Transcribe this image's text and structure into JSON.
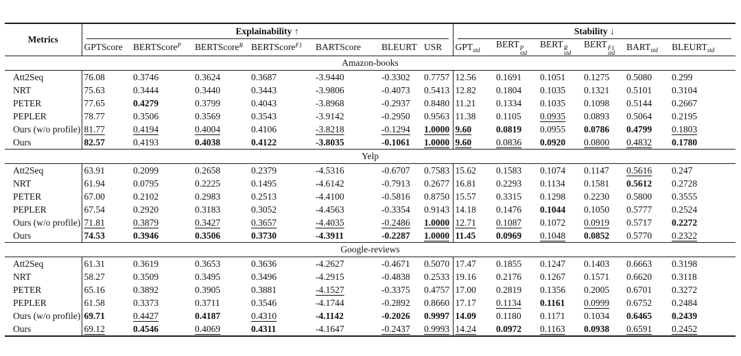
{
  "table": {
    "metrics_label": "Metrics",
    "groups": [
      {
        "id": "explainability",
        "label": "Explainability ↑"
      },
      {
        "id": "stability",
        "label": "Stability ↓"
      }
    ],
    "columns": [
      {
        "id": "gptscore",
        "base": "GPTScore",
        "sup": "",
        "sub": ""
      },
      {
        "id": "bertscore-p",
        "base": "BERTScore",
        "sup": "P",
        "sub": ""
      },
      {
        "id": "bertscore-r",
        "base": "BERTScore",
        "sup": "R",
        "sub": ""
      },
      {
        "id": "bertscore-f1",
        "base": "BERTScore",
        "sup": "F1",
        "sub": ""
      },
      {
        "id": "bartscore",
        "base": "BARTScore",
        "sup": "",
        "sub": ""
      },
      {
        "id": "bleurt",
        "base": "BLEURT",
        "sup": "",
        "sub": ""
      },
      {
        "id": "usr",
        "base": "USR",
        "sup": "",
        "sub": ""
      },
      {
        "id": "gpt-std",
        "base": "GPT",
        "sup": "",
        "sub": "std"
      },
      {
        "id": "bert-p-std",
        "base": "BERT",
        "sup": "P",
        "sub": "std"
      },
      {
        "id": "bert-r-std",
        "base": "BERT",
        "sup": "R",
        "sub": "std"
      },
      {
        "id": "bert-f1-std",
        "base": "BERT",
        "sup": "F1",
        "sub": "std"
      },
      {
        "id": "bart-std",
        "base": "BART",
        "sup": "",
        "sub": "std"
      },
      {
        "id": "bleurt-std",
        "base": "BLEURT",
        "sup": "",
        "sub": "std"
      }
    ],
    "style_legend": {
      "b": "bold (best)",
      "u": "underline (second best)",
      "bu": "bold+underline"
    },
    "sections": [
      {
        "title": "Amazon-books",
        "rows": [
          {
            "model": "Att2Seq",
            "v": [
              "76.08",
              "0.3746",
              "0.3624",
              "0.3687",
              "-3.9440",
              "-0.3302",
              "0.7757",
              "12.56",
              "0.1691",
              "0.1051",
              "0.1275",
              "0.5080",
              "0.299"
            ],
            "s": [
              "",
              "",
              "",
              "",
              "",
              "",
              "",
              "",
              "",
              "",
              "",
              "",
              ""
            ]
          },
          {
            "model": "NRT",
            "v": [
              "75.63",
              "0.3444",
              "0.3440",
              "0.3443",
              "-3.9806",
              "-0.4073",
              "0.5413",
              "12.82",
              "0.1804",
              "0.1035",
              "0.1321",
              "0.5101",
              "0.3104"
            ],
            "s": [
              "",
              "",
              "",
              "",
              "",
              "",
              "",
              "",
              "",
              "",
              "",
              "",
              ""
            ]
          },
          {
            "model": "PETER",
            "v": [
              "77.65",
              "0.4279",
              "0.3799",
              "0.4043",
              "-3.8968",
              "-0.2937",
              "0.8480",
              "11.21",
              "0.1334",
              "0.1035",
              "0.1098",
              "0.5144",
              "0.2667"
            ],
            "s": [
              "",
              "b",
              "",
              "",
              "",
              "",
              "",
              "",
              "",
              "",
              "",
              "",
              ""
            ]
          },
          {
            "model": "PEPLER",
            "v": [
              "78.77",
              "0.3506",
              "0.3569",
              "0.3543",
              "-3.9142",
              "-0.2950",
              "0.9563",
              "11.38",
              "0.1105",
              "0.0935",
              "0.0893",
              "0.5064",
              "0.2195"
            ],
            "s": [
              "",
              "",
              "",
              "",
              "",
              "",
              "",
              "",
              "",
              "u",
              "",
              "",
              ""
            ]
          },
          {
            "model": "Ours (w/o profile)",
            "v": [
              "81.77",
              "0.4194",
              "0.4004",
              "0.4106",
              "-3.8218",
              "-0.1294",
              "1.0000",
              "9.60",
              "0.0819",
              "0.0955",
              "0.0786",
              "0.4799",
              "0.1803"
            ],
            "s": [
              "u",
              "u",
              "u",
              "",
              "u",
              "u",
              "bu",
              "bu",
              "b",
              "",
              "b",
              "b",
              "u"
            ]
          },
          {
            "model": "Ours",
            "v": [
              "82.57",
              "0.4193",
              "0.4038",
              "0.4122",
              "-3.8035",
              "-0.1061",
              "1.0000",
              "9.60",
              "0.0836",
              "0.0920",
              "0.0800",
              "0.4832",
              "0.1780"
            ],
            "s": [
              "b",
              "",
              "b",
              "b",
              "b",
              "b",
              "bu",
              "bu",
              "u",
              "b",
              "u",
              "u",
              "b"
            ]
          }
        ]
      },
      {
        "title": "Yelp",
        "rows": [
          {
            "model": "Att2Seq",
            "v": [
              "63.91",
              "0.2099",
              "0.2658",
              "0.2379",
              "-4.5316",
              "-0.6707",
              "0.7583",
              "15.62",
              "0.1583",
              "0.1074",
              "0.1147",
              "0.5616",
              "0.247"
            ],
            "s": [
              "",
              "",
              "",
              "",
              "",
              "",
              "",
              "",
              "",
              "",
              "",
              "u",
              ""
            ]
          },
          {
            "model": "NRT",
            "v": [
              "61.94",
              "0.0795",
              "0.2225",
              "0.1495",
              "-4.6142",
              "-0.7913",
              "0.2677",
              "16.81",
              "0.2293",
              "0.1134",
              "0.1581",
              "0.5612",
              "0.2728"
            ],
            "s": [
              "",
              "",
              "",
              "",
              "",
              "",
              "",
              "",
              "",
              "",
              "",
              "b",
              ""
            ]
          },
          {
            "model": "PETER",
            "v": [
              "67.00",
              "0.2102",
              "0.2983",
              "0.2513",
              "-4.4100",
              "-0.5816",
              "0.8750",
              "15.57",
              "0.3315",
              "0.1298",
              "0.2230",
              "0.5800",
              "0.3555"
            ],
            "s": [
              "",
              "",
              "",
              "",
              "",
              "",
              "",
              "",
              "",
              "",
              "",
              "",
              ""
            ]
          },
          {
            "model": "PEPLER",
            "v": [
              "67.54",
              "0.2920",
              "0.3183",
              "0.3052",
              "-4.4563",
              "-0.3354",
              "0.9143",
              "14.18",
              "0.1476",
              "0.1044",
              "0.1050",
              "0.5777",
              "0.2524"
            ],
            "s": [
              "",
              "",
              "",
              "",
              "",
              "",
              "",
              "",
              "",
              "b",
              "",
              "",
              ""
            ]
          },
          {
            "model": "Ours (w/o profile)",
            "v": [
              "71.81",
              "0.3879",
              "0.3427",
              "0.3657",
              "-4.4035",
              "-0.2486",
              "1.0000",
              "12.71",
              "0.1087",
              "0.1072",
              "0.0919",
              "0.5717",
              "0.2272"
            ],
            "s": [
              "u",
              "u",
              "u",
              "u",
              "u",
              "u",
              "bu",
              "u",
              "u",
              "",
              "u",
              "",
              "b"
            ]
          },
          {
            "model": "Ours",
            "v": [
              "74.53",
              "0.3946",
              "0.3506",
              "0.3730",
              "-4.3911",
              "-0.2287",
              "1.0000",
              "11.45",
              "0.0969",
              "0.1048",
              "0.0852",
              "0.5770",
              "0.2322"
            ],
            "s": [
              "b",
              "b",
              "b",
              "b",
              "b",
              "b",
              "bu",
              "b",
              "b",
              "u",
              "b",
              "",
              "u"
            ]
          }
        ]
      },
      {
        "title": "Google-reviews",
        "rows": [
          {
            "model": "Att2Seq",
            "v": [
              "61.31",
              "0.3619",
              "0.3653",
              "0.3636",
              "-4.2627",
              "-0.4671",
              "0.5070",
              "17.47",
              "0.1855",
              "0.1247",
              "0.1403",
              "0.6663",
              "0.3198"
            ],
            "s": [
              "",
              "",
              "",
              "",
              "",
              "",
              "",
              "",
              "",
              "",
              "",
              "",
              ""
            ]
          },
          {
            "model": "NRT",
            "v": [
              "58.27",
              "0.3509",
              "0.3495",
              "0.3496",
              "-4.2915",
              "-0.4838",
              "0.2533",
              "19.16",
              "0.2176",
              "0.1267",
              "0.1571",
              "0.6620",
              "0.3118"
            ],
            "s": [
              "",
              "",
              "",
              "",
              "",
              "",
              "",
              "",
              "",
              "",
              "",
              "",
              ""
            ]
          },
          {
            "model": "PETER",
            "v": [
              "65.16",
              "0.3892",
              "0.3905",
              "0.3881",
              "-4.1527",
              "-0.3375",
              "0.4757",
              "17.00",
              "0.2819",
              "0.1356",
              "0.2005",
              "0.6701",
              "0.3272"
            ],
            "s": [
              "",
              "",
              "",
              "",
              "u",
              "",
              "",
              "",
              "",
              "",
              "",
              "",
              ""
            ]
          },
          {
            "model": "PEPLER",
            "v": [
              "61.58",
              "0.3373",
              "0.3711",
              "0.3546",
              "-4.1744",
              "-0.2892",
              "0.8660",
              "17.17",
              "0.1134",
              "0.1161",
              "0.0999",
              "0.6752",
              "0.2484"
            ],
            "s": [
              "",
              "",
              "",
              "",
              "",
              "",
              "",
              "",
              "u",
              "b",
              "u",
              "",
              ""
            ]
          },
          {
            "model": "Ours (w/o profile)",
            "v": [
              "69.71",
              "0.4427",
              "0.4187",
              "0.4310",
              "-4.1142",
              "-0.2026",
              "0.9997",
              "14.09",
              "0.1180",
              "0.1171",
              "0.1034",
              "0.6465",
              "0.2439"
            ],
            "s": [
              "b",
              "u",
              "b",
              "u",
              "b",
              "b",
              "b",
              "b",
              "",
              "",
              "",
              "b",
              "b"
            ]
          },
          {
            "model": "Ours",
            "v": [
              "69.12",
              "0.4546",
              "0.4069",
              "0.4311",
              "-4.1647",
              "-0.2437",
              "0.9993",
              "14.24",
              "0.0972",
              "0.1163",
              "0.0938",
              "0.6591",
              "0.2452"
            ],
            "s": [
              "u",
              "b",
              "u",
              "b",
              "",
              "u",
              "u",
              "u",
              "b",
              "u",
              "b",
              "u",
              "u"
            ]
          }
        ]
      }
    ]
  }
}
